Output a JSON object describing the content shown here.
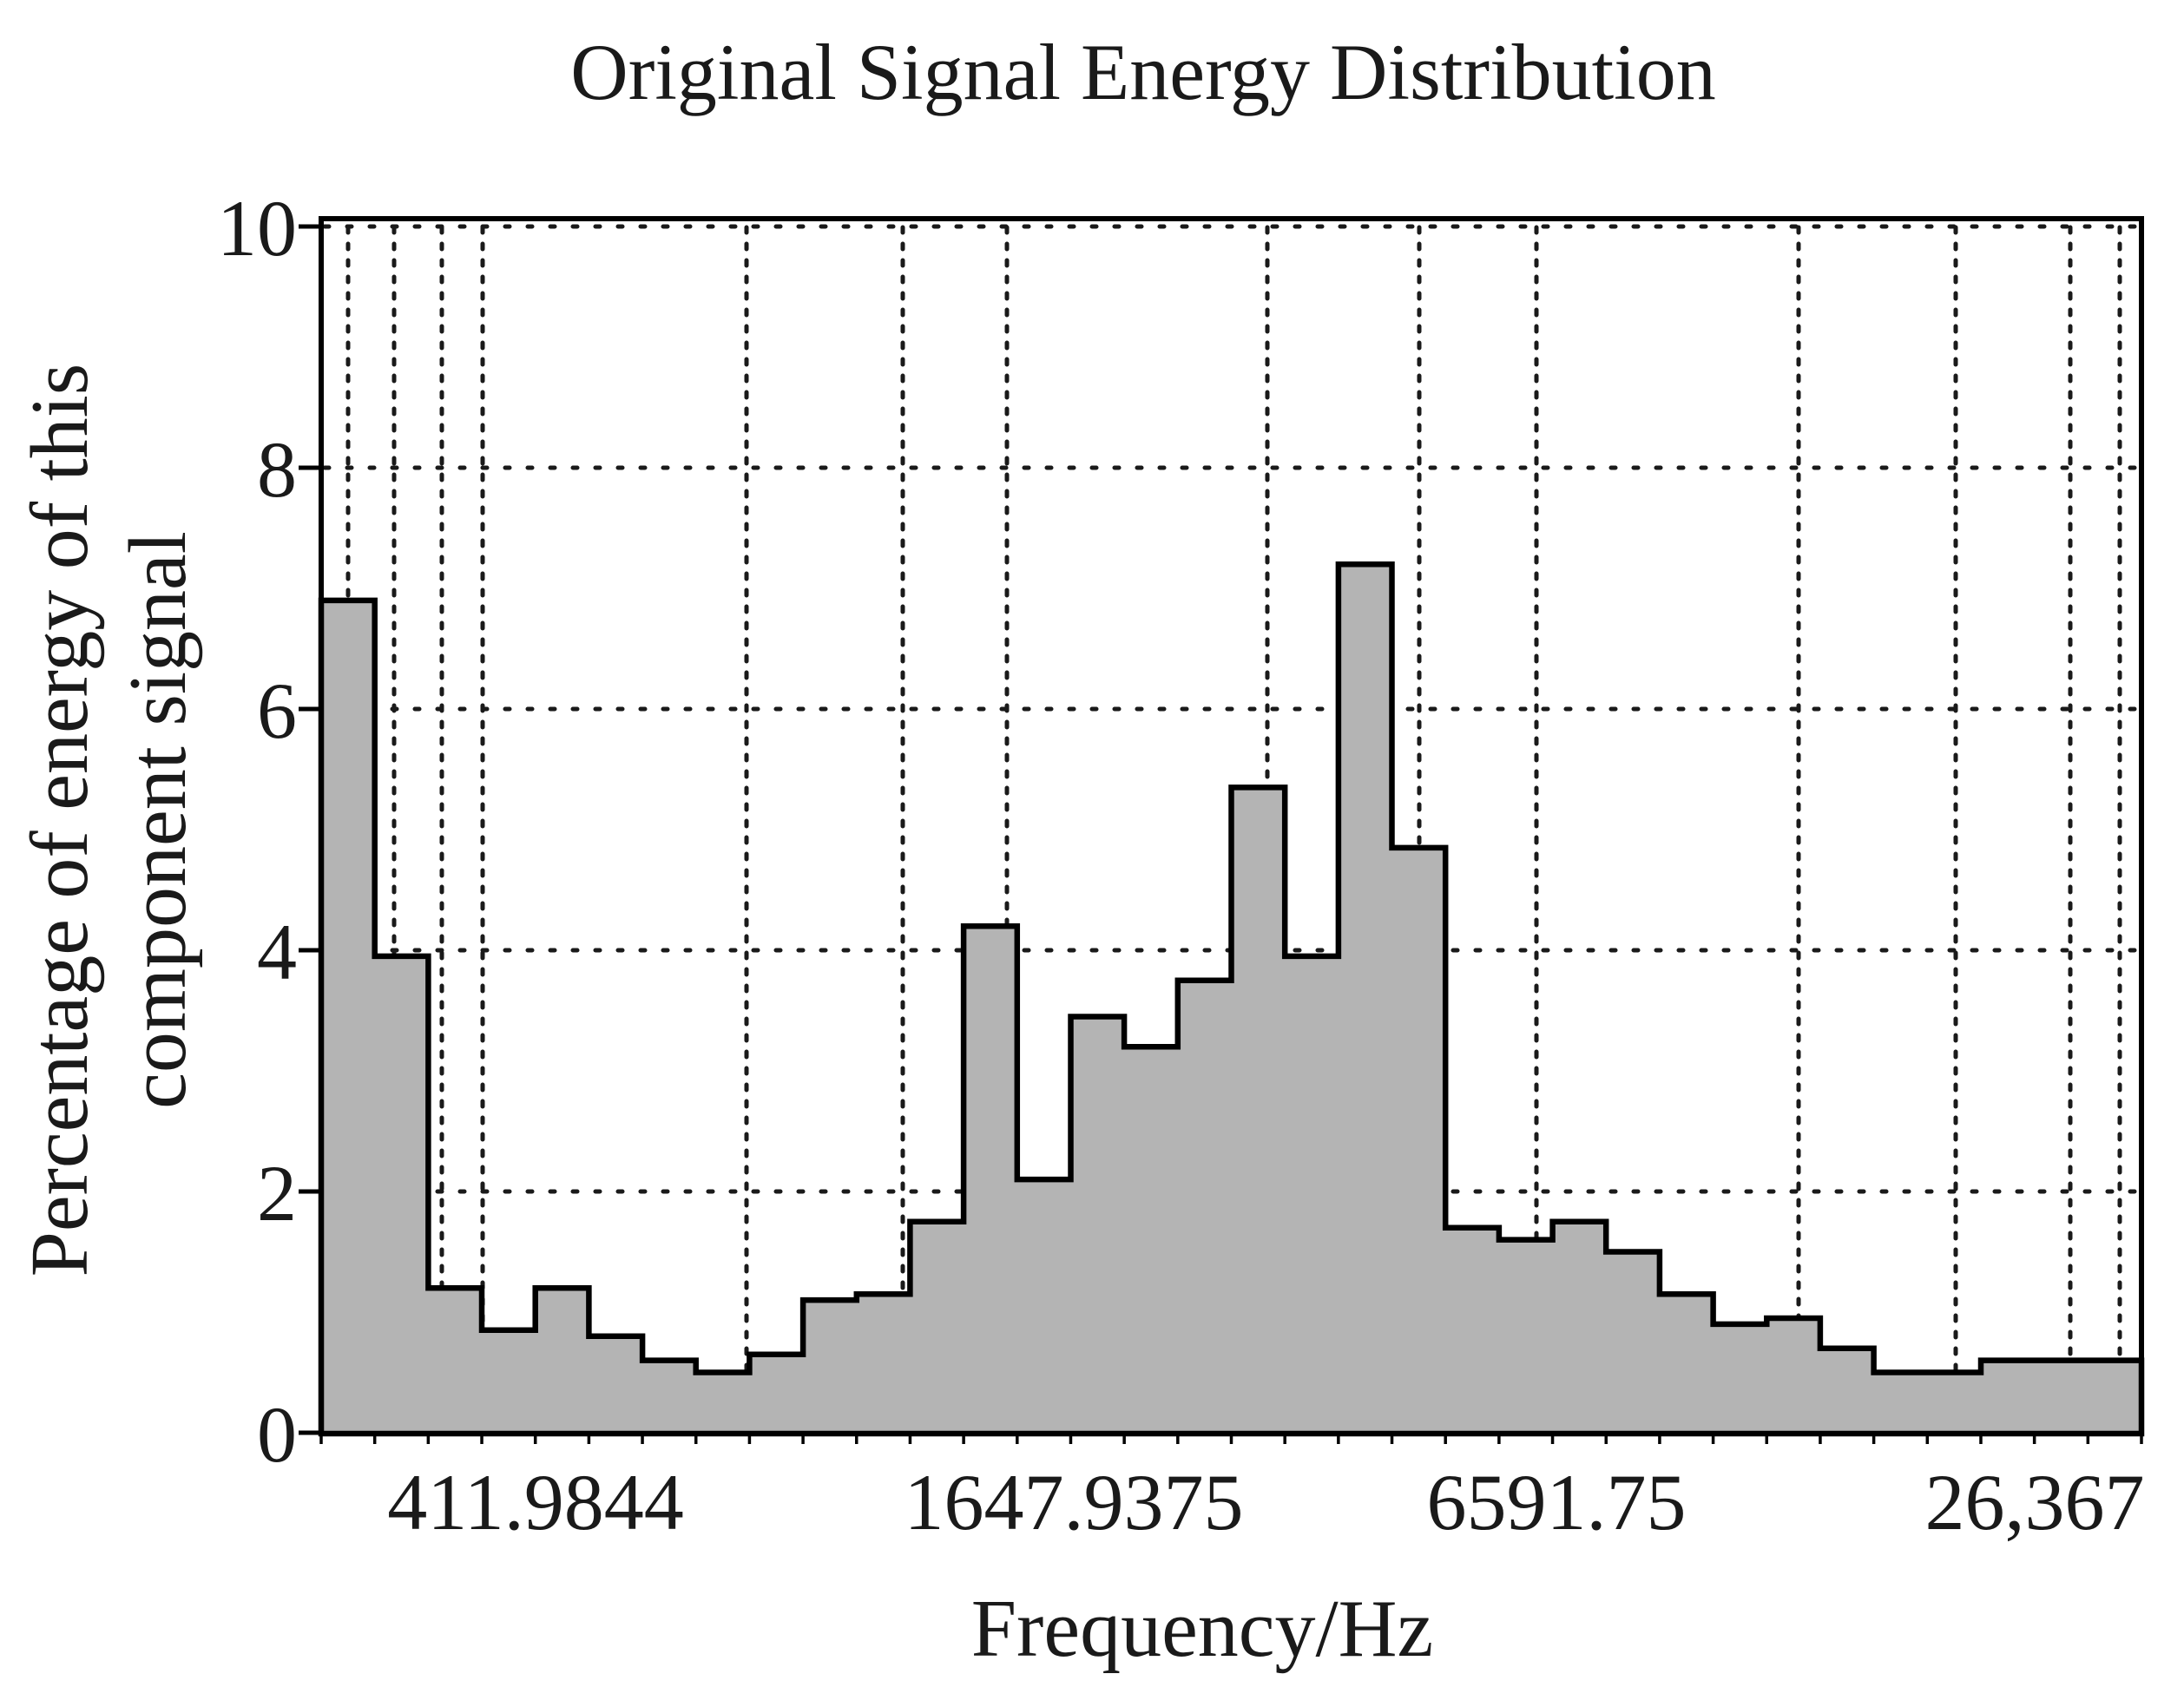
{
  "title": "Original Signal Energy Distribution",
  "x_axis": {
    "label": "Frequency/Hz",
    "tick_labels": [
      "411.9844",
      "1647.9375",
      "6591.75",
      "26,367"
    ]
  },
  "y_axis": {
    "label_line1": "Percentage of energy of this",
    "label_line2": "component signal",
    "tick_labels": [
      "0",
      "2",
      "4",
      "6",
      "8",
      "10"
    ]
  },
  "chart_data": {
    "type": "bar",
    "subtype": "stairstep-histogram",
    "title": "Original Signal Energy Distribution",
    "xlabel": "Frequency/Hz",
    "ylabel": "Percentage of energy of this component signal",
    "x_scale": "log",
    "x_tick_values_hz": [
      411.9844,
      1647.9375,
      6591.75,
      26367
    ],
    "x_tick_labels": [
      "411.9844",
      "1647.9375",
      "6591.75",
      "26,367"
    ],
    "ylim": [
      0,
      10
    ],
    "y_ticks": [
      0,
      2,
      4,
      6,
      8,
      10
    ],
    "bins": 34,
    "values_percent": [
      6.9,
      3.95,
      1.2,
      0.85,
      1.2,
      0.8,
      0.6,
      0.5,
      0.65,
      1.1,
      1.15,
      1.75,
      4.2,
      2.1,
      3.45,
      3.2,
      3.75,
      5.35,
      3.95,
      7.2,
      4.85,
      1.7,
      1.6,
      1.75,
      1.5,
      1.15,
      0.9,
      0.95,
      0.7,
      0.5,
      0.5,
      0.6,
      0.6,
      0.6
    ],
    "grid": "dotted",
    "legend": "none",
    "bar_fill_color": "#b4b4b4",
    "bar_outline_color": "#000000",
    "axis_color": "#000000",
    "grid_color": "#1a1a1a",
    "background_color": "#ffffff",
    "text_color": "#1f1f1f"
  }
}
